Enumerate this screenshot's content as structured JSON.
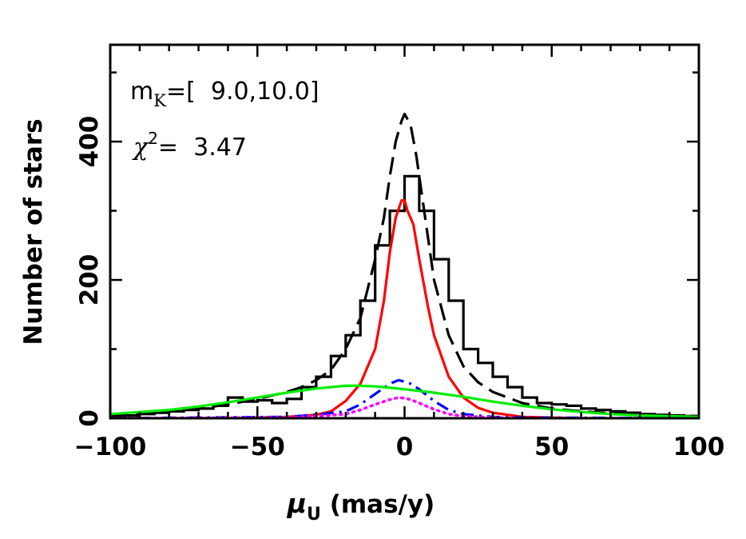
{
  "chart_data": {
    "type": "line",
    "xlabel": "μ",
    "xlabel_sub": "U",
    "xlabel_unit": " (mas/y)",
    "ylabel": "Number of stars",
    "xlim": [
      -100,
      100
    ],
    "ylim": [
      0,
      540
    ],
    "x_ticks": [
      -100,
      -50,
      0,
      50,
      100
    ],
    "y_ticks": [
      0,
      200,
      400
    ],
    "annotations": {
      "mag_prefix": "m",
      "mag_sub": "K",
      "mag_range": "=[  9.0,10.0]",
      "chi_symbol": "χ",
      "chi_sup": "2",
      "chi_value": "=  3.47"
    },
    "histogram": {
      "bin_edges": [
        -100,
        -95,
        -90,
        -85,
        -80,
        -75,
        -70,
        -65,
        -60,
        -55,
        -50,
        -45,
        -40,
        -35,
        -30,
        -25,
        -20,
        -15,
        -10,
        -5,
        0,
        5,
        10,
        15,
        20,
        25,
        30,
        35,
        40,
        45,
        50,
        55,
        60,
        65,
        70,
        75,
        80,
        85,
        90,
        95,
        100
      ],
      "counts": [
        3,
        4,
        6,
        8,
        10,
        12,
        14,
        18,
        30,
        24,
        26,
        22,
        28,
        45,
        60,
        90,
        120,
        170,
        250,
        300,
        350,
        300,
        230,
        170,
        100,
        80,
        60,
        45,
        30,
        22,
        20,
        18,
        14,
        12,
        10,
        8,
        6,
        5,
        4,
        3
      ],
      "color": "#000000"
    },
    "series": [
      {
        "style": "dashed",
        "color": "#000000",
        "x": [
          -100,
          -90,
          -80,
          -70,
          -60,
          -50,
          -40,
          -35,
          -30,
          -25,
          -20,
          -15,
          -10,
          -7,
          -5,
          -3,
          -1,
          0,
          2,
          4,
          6,
          8,
          10,
          15,
          20,
          25,
          30,
          40,
          50,
          60,
          70,
          80,
          90,
          100
        ],
        "y": [
          5,
          7,
          10,
          14,
          20,
          28,
          38,
          45,
          55,
          70,
          100,
          145,
          230,
          290,
          350,
          400,
          430,
          440,
          425,
          380,
          320,
          260,
          200,
          120,
          75,
          52,
          38,
          22,
          14,
          10,
          7,
          5,
          4,
          3
        ]
      },
      {
        "style": "solid",
        "color": "#ff0000",
        "x": [
          -100,
          -60,
          -40,
          -30,
          -25,
          -20,
          -15,
          -10,
          -7,
          -5,
          -3,
          -1,
          0,
          1,
          3,
          5,
          8,
          10,
          15,
          20,
          25,
          30,
          40,
          60,
          100
        ],
        "y": [
          0,
          0,
          2,
          5,
          10,
          25,
          50,
          100,
          170,
          240,
          290,
          315,
          315,
          300,
          280,
          230,
          160,
          120,
          60,
          30,
          15,
          8,
          2,
          0,
          0
        ]
      },
      {
        "style": "dashdot",
        "color": "#0000ff",
        "x": [
          -100,
          -40,
          -30,
          -20,
          -15,
          -10,
          -5,
          -2,
          0,
          2,
          5,
          10,
          15,
          20,
          30,
          40,
          100
        ],
        "y": [
          0,
          2,
          5,
          10,
          20,
          35,
          50,
          55,
          53,
          50,
          42,
          25,
          12,
          6,
          2,
          1,
          0
        ]
      },
      {
        "style": "dotted",
        "color": "#ff00ff",
        "x": [
          -100,
          -40,
          -30,
          -20,
          -15,
          -10,
          -5,
          -2,
          0,
          2,
          5,
          10,
          15,
          20,
          30,
          40,
          100
        ],
        "y": [
          0,
          1,
          3,
          6,
          12,
          20,
          27,
          30,
          29,
          27,
          22,
          13,
          6,
          3,
          1,
          0,
          0
        ]
      },
      {
        "style": "solid",
        "color": "#00ee00",
        "x": [
          -100,
          -90,
          -80,
          -70,
          -60,
          -50,
          -40,
          -30,
          -20,
          -15,
          -10,
          -5,
          0,
          10,
          20,
          30,
          40,
          50,
          60,
          70,
          80,
          90,
          100
        ],
        "y": [
          6,
          9,
          12,
          17,
          23,
          30,
          37,
          43,
          47,
          47,
          46,
          44,
          42,
          37,
          31,
          24,
          18,
          13,
          9,
          6,
          4,
          3,
          2
        ]
      }
    ]
  }
}
